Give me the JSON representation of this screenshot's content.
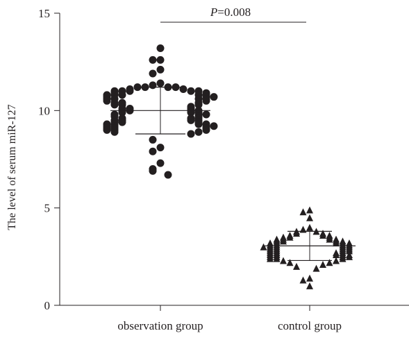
{
  "chart_data": {
    "type": "scatter",
    "ylabel": "The level of serum miR-127",
    "xlabel": "",
    "ylim": [
      0,
      15
    ],
    "yticks": [
      0,
      5,
      10,
      15
    ],
    "categories": [
      "observation group",
      "control group"
    ],
    "grid": false,
    "legend": "none",
    "annotation": {
      "p_label": "P",
      "p_value": "=0.008",
      "spans": [
        "observation group",
        "control group"
      ]
    },
    "series": [
      {
        "category": "observation group",
        "marker": "circle",
        "color": "#231f20",
        "mean": 10.0,
        "sd_upper": 11.2,
        "sd_lower": 8.8,
        "values": [
          13.2,
          12.6,
          12.6,
          12.1,
          11.9,
          11.4,
          11.3,
          11.2,
          11.2,
          11.2,
          11.2,
          11.1,
          11.1,
          11.0,
          11.0,
          11.0,
          11.0,
          11.0,
          10.9,
          10.9,
          10.8,
          10.8,
          10.8,
          10.8,
          10.8,
          10.7,
          10.7,
          10.7,
          10.6,
          10.6,
          10.6,
          10.6,
          10.5,
          10.5,
          10.4,
          10.4,
          10.4,
          10.3,
          10.3,
          10.3,
          10.2,
          10.1,
          10.1,
          10.1,
          10.0,
          10.0,
          10.0,
          10.0,
          9.9,
          9.9,
          9.9,
          9.8,
          9.8,
          9.8,
          9.7,
          9.7,
          9.6,
          9.6,
          9.6,
          9.5,
          9.5,
          9.5,
          9.5,
          9.4,
          9.4,
          9.4,
          9.3,
          9.3,
          9.3,
          9.3,
          9.2,
          9.2,
          9.2,
          9.2,
          9.1,
          9.1,
          9.1,
          9.0,
          9.0,
          9.0,
          8.9,
          8.9,
          8.8,
          8.5,
          8.1,
          7.9,
          7.3,
          7.0,
          6.9,
          6.7
        ]
      },
      {
        "category": "control group",
        "marker": "triangle",
        "color": "#231f20",
        "mean": 3.05,
        "sd_upper": 3.8,
        "sd_lower": 2.3,
        "values": [
          4.9,
          4.8,
          4.5,
          4.0,
          3.9,
          3.8,
          3.8,
          3.7,
          3.7,
          3.6,
          3.6,
          3.6,
          3.5,
          3.5,
          3.5,
          3.4,
          3.4,
          3.4,
          3.4,
          3.3,
          3.3,
          3.3,
          3.3,
          3.2,
          3.2,
          3.2,
          3.2,
          3.2,
          3.1,
          3.1,
          3.1,
          3.1,
          3.0,
          3.0,
          3.0,
          3.0,
          3.0,
          2.9,
          2.9,
          2.9,
          2.9,
          2.8,
          2.8,
          2.8,
          2.8,
          2.7,
          2.7,
          2.7,
          2.7,
          2.6,
          2.6,
          2.6,
          2.6,
          2.6,
          2.5,
          2.5,
          2.5,
          2.5,
          2.4,
          2.4,
          2.4,
          2.3,
          2.3,
          2.2,
          2.2,
          2.1,
          2.0,
          1.9,
          1.4,
          1.3,
          1.0
        ]
      }
    ]
  }
}
